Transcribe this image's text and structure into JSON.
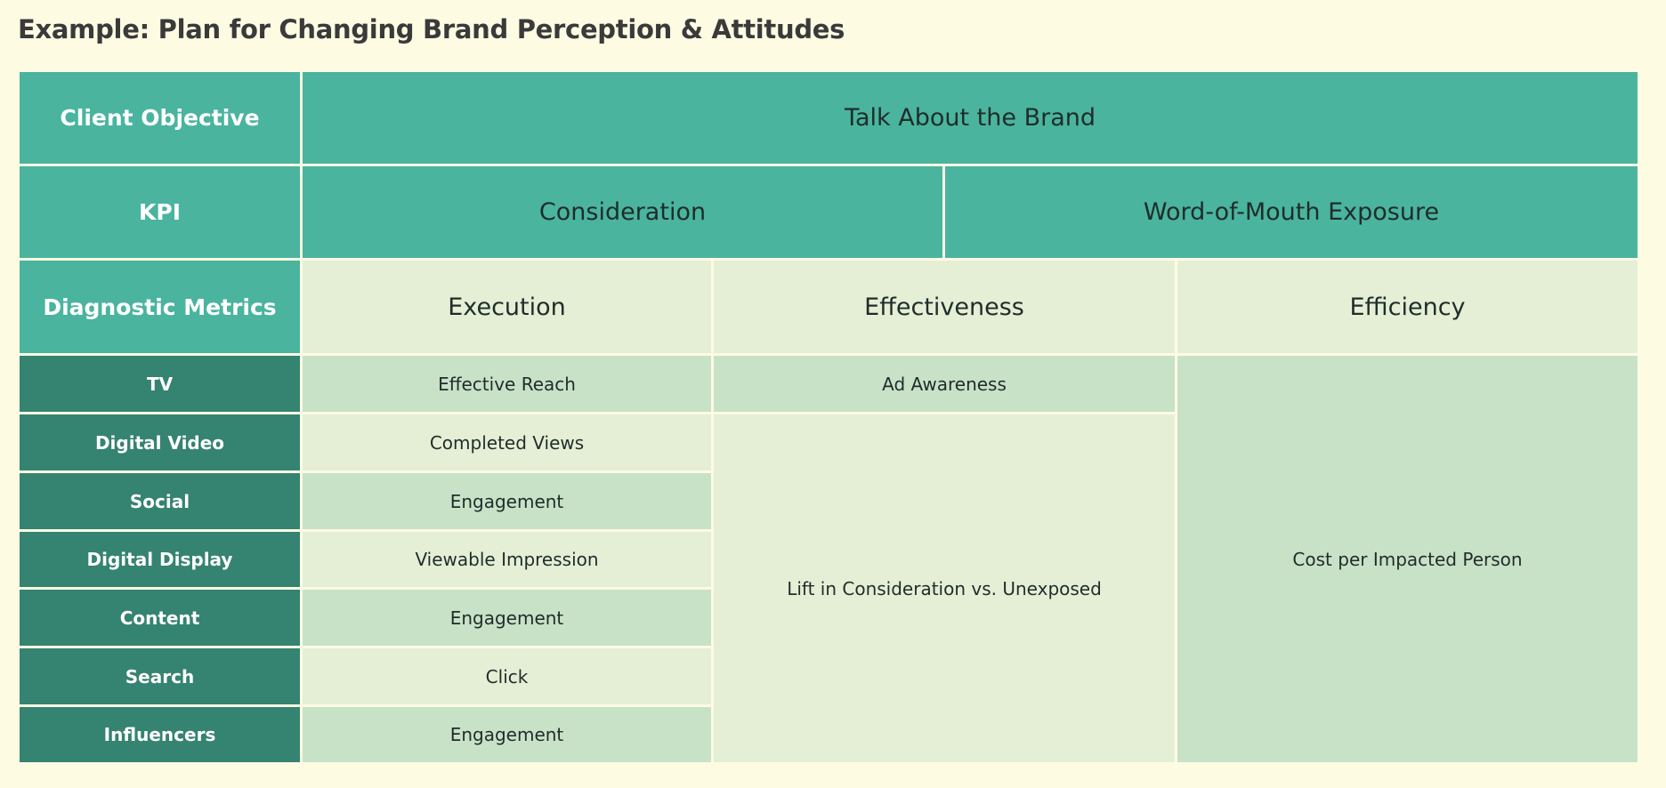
{
  "title": "Example: Plan for Changing Brand Perception & Attitudes",
  "colors": {
    "background": "#fefbe3",
    "header_teal": "#4ab49f",
    "row_label_dark": "#358371",
    "cell_light": "#e5efd6",
    "cell_mid": "#c8e2c8",
    "grid_line": "#fefbe3"
  },
  "table": {
    "client_objective": {
      "label": "Client Objective",
      "value": "Talk About the Brand"
    },
    "kpi": {
      "label": "KPI",
      "values": [
        "Consideration",
        "Word-of-Mouth Exposure"
      ]
    },
    "diagnostic_metrics": {
      "label": "Diagnostic Metrics",
      "columns": [
        "Execution",
        "Effectiveness",
        "Efficiency"
      ]
    },
    "channels": [
      {
        "name": "TV",
        "execution": "Effective Reach"
      },
      {
        "name": "Digital Video",
        "execution": "Completed Views"
      },
      {
        "name": "Social",
        "execution": "Engagement"
      },
      {
        "name": "Digital Display",
        "execution": "Viewable Impression"
      },
      {
        "name": "Content",
        "execution": "Engagement"
      },
      {
        "name": "Search",
        "execution": "Click"
      },
      {
        "name": "Influencers",
        "execution": "Engagement"
      }
    ],
    "effectiveness_tv": "Ad Awareness",
    "effectiveness_other": "Lift in Consideration vs. Unexposed",
    "efficiency_all": "Cost per Impacted Person"
  }
}
